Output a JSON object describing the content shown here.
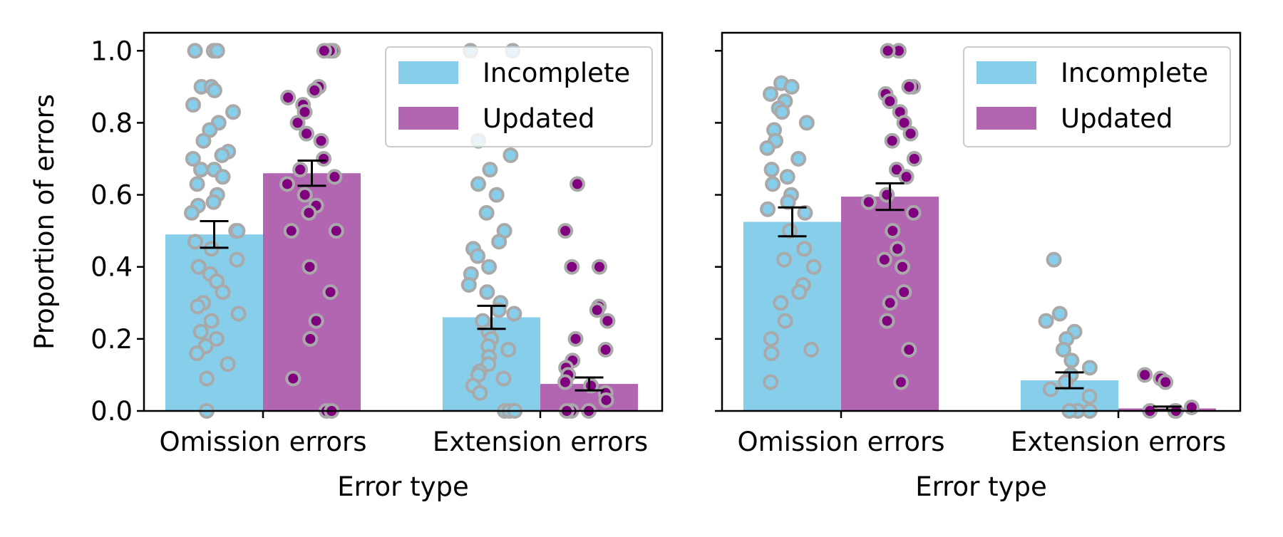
{
  "chart_data": [
    {
      "type": "bar",
      "panel": "left",
      "categories": [
        "Omission errors",
        "Extension errors"
      ],
      "series": [
        {
          "name": "Incomplete",
          "color": "#87ceeb",
          "values": [
            0.49,
            0.26
          ],
          "err": [
            0.037,
            0.032
          ],
          "points": [
            [
              1.0,
              1.0,
              1.0,
              0.9,
              0.9,
              0.89,
              0.85,
              0.83,
              0.8,
              0.78,
              0.75,
              0.72,
              0.71,
              0.7,
              0.67,
              0.67,
              0.65,
              0.63,
              0.6,
              0.58,
              0.57,
              0.55,
              0.5,
              0.5,
              0.47,
              0.45,
              0.42,
              0.4,
              0.38,
              0.36,
              0.33,
              0.3,
              0.29,
              0.27,
              0.25,
              0.22,
              0.2,
              0.18,
              0.16,
              0.13,
              0.09,
              0.0
            ],
            [
              1.0,
              1.0,
              0.75,
              0.71,
              0.67,
              0.63,
              0.6,
              0.55,
              0.5,
              0.47,
              0.45,
              0.43,
              0.4,
              0.38,
              0.35,
              0.33,
              0.3,
              0.28,
              0.27,
              0.25,
              0.22,
              0.2,
              0.18,
              0.17,
              0.15,
              0.13,
              0.11,
              0.1,
              0.09,
              0.07,
              0.05,
              0.0,
              0.0,
              0.0
            ]
          ]
        },
        {
          "name": "Updated",
          "color": "#b266b2",
          "values": [
            0.66,
            0.075
          ],
          "err": [
            0.035,
            0.018
          ],
          "points": [
            [
              1.0,
              1.0,
              1.0,
              0.9,
              0.89,
              0.87,
              0.85,
              0.83,
              0.8,
              0.77,
              0.75,
              0.7,
              0.67,
              0.65,
              0.63,
              0.6,
              0.57,
              0.55,
              0.5,
              0.5,
              0.4,
              0.33,
              0.25,
              0.2,
              0.09,
              0.0,
              0.0
            ],
            [
              0.63,
              0.5,
              0.4,
              0.4,
              0.29,
              0.28,
              0.25,
              0.2,
              0.17,
              0.14,
              0.12,
              0.1,
              0.08,
              0.07,
              0.05,
              0.03,
              0.0,
              0.0,
              0.0
            ]
          ]
        }
      ],
      "ylabel": "Proportion of errors",
      "xlabel": "Error type",
      "ylim": [
        0,
        1.05
      ],
      "yticks": [
        "0.0",
        "0.2",
        "0.4",
        "0.6",
        "0.8",
        "1.0"
      ],
      "legend": "top-right"
    },
    {
      "type": "bar",
      "panel": "right",
      "categories": [
        "Omission errors",
        "Extension errors"
      ],
      "series": [
        {
          "name": "Incomplete",
          "color": "#87ceeb",
          "values": [
            0.525,
            0.085
          ],
          "err": [
            0.04,
            0.022
          ],
          "points": [
            [
              0.91,
              0.9,
              0.88,
              0.86,
              0.84,
              0.83,
              0.8,
              0.78,
              0.75,
              0.73,
              0.7,
              0.67,
              0.65,
              0.63,
              0.6,
              0.58,
              0.56,
              0.55,
              0.5,
              0.45,
              0.42,
              0.4,
              0.35,
              0.33,
              0.3,
              0.25,
              0.2,
              0.17,
              0.16,
              0.08
            ],
            [
              0.42,
              0.27,
              0.25,
              0.22,
              0.2,
              0.17,
              0.14,
              0.12,
              0.1,
              0.08,
              0.06,
              0.04,
              0.0,
              0.0,
              0.0
            ]
          ]
        },
        {
          "name": "Updated",
          "color": "#b266b2",
          "values": [
            0.595,
            0.007
          ],
          "err": [
            0.037,
            0.005
          ],
          "points": [
            [
              1.0,
              1.0,
              0.9,
              0.9,
              0.88,
              0.86,
              0.83,
              0.8,
              0.77,
              0.75,
              0.7,
              0.67,
              0.65,
              0.6,
              0.58,
              0.55,
              0.5,
              0.45,
              0.42,
              0.4,
              0.33,
              0.3,
              0.25,
              0.17,
              0.08
            ],
            [
              0.1,
              0.09,
              0.08,
              0.01,
              0.0,
              0.0,
              0.0
            ]
          ]
        }
      ],
      "ylabel": "",
      "xlabel": "Error type",
      "ylim": [
        0,
        1.05
      ],
      "yticks": [
        "",
        "",
        "",
        "",
        "",
        ""
      ],
      "legend": "top-right"
    }
  ]
}
